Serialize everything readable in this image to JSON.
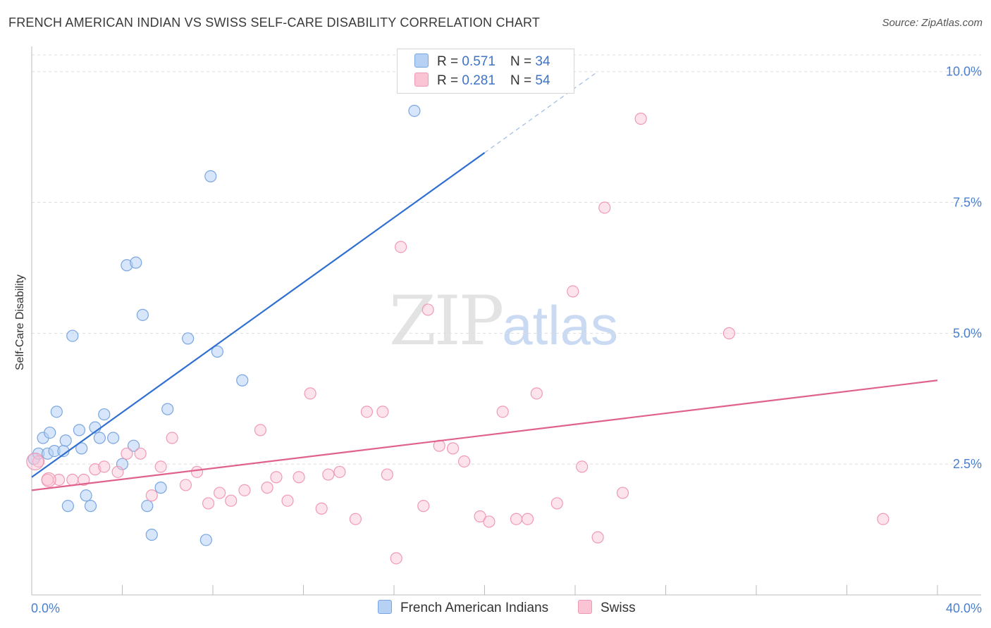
{
  "title": "FRENCH AMERICAN INDIAN VS SWISS SELF-CARE DISABILITY CORRELATION CHART",
  "source": "Source: ZipAtlas.com",
  "watermark": {
    "zip": "ZIP",
    "atlas": "atlas"
  },
  "legend": {
    "rows": [
      {
        "r_label": "R = ",
        "r_value": "0.571",
        "n_label": "N = ",
        "n_value": "34",
        "color": "#b7d1f5",
        "border": "#7aa6e0"
      },
      {
        "r_label": "R = ",
        "r_value": "0.281",
        "n_label": "N = ",
        "n_value": "54",
        "color": "#fbc4d4",
        "border": "#ef9ab4"
      }
    ]
  },
  "bottom_legend": [
    {
      "label": "French American Indians",
      "color": "#b7d1f5",
      "border": "#7aa6e0"
    },
    {
      "label": "Swiss",
      "color": "#fbc4d4",
      "border": "#ef9ab4"
    }
  ],
  "chart_data": {
    "type": "scatter",
    "title": "FRENCH AMERICAN INDIAN VS SWISS SELF-CARE DISABILITY CORRELATION CHART",
    "xlabel": "",
    "ylabel": "Self-Care Disability",
    "xlim": [
      0,
      40
    ],
    "ylim": [
      0,
      10.4
    ],
    "x_tick_labels": [
      {
        "value": 0,
        "label": "0.0%"
      },
      {
        "value": 40,
        "label": "40.0%"
      }
    ],
    "y_tick_labels": [
      {
        "value": 2.5,
        "label": "2.5%"
      },
      {
        "value": 5.0,
        "label": "5.0%"
      },
      {
        "value": 7.5,
        "label": "7.5%"
      },
      {
        "value": 10.0,
        "label": "10.0%"
      }
    ],
    "series": [
      {
        "name": "French American Indians",
        "color": "#7aa6e0",
        "fill": "rgba(183,209,245,0.55)",
        "trend_color": "#2f6fd0",
        "trend": {
          "x0": 0,
          "y0": 2.25,
          "x1": 20,
          "y1": 8.45,
          "dash_to_x": 25,
          "dash_to_y": 10.0
        },
        "points": [
          [
            0.1,
            2.6
          ],
          [
            0.3,
            2.7
          ],
          [
            0.5,
            3.0
          ],
          [
            0.7,
            2.7
          ],
          [
            0.8,
            3.1
          ],
          [
            1.0,
            2.75
          ],
          [
            1.1,
            3.5
          ],
          [
            1.4,
            2.75
          ],
          [
            1.5,
            2.95
          ],
          [
            1.6,
            1.7
          ],
          [
            1.8,
            4.95
          ],
          [
            2.1,
            3.15
          ],
          [
            2.2,
            2.8
          ],
          [
            2.4,
            1.9
          ],
          [
            2.6,
            1.7
          ],
          [
            2.8,
            3.2
          ],
          [
            3.0,
            3.0
          ],
          [
            3.2,
            3.45
          ],
          [
            3.6,
            3.0
          ],
          [
            4.0,
            2.5
          ],
          [
            4.2,
            6.3
          ],
          [
            4.5,
            2.85
          ],
          [
            4.6,
            6.35
          ],
          [
            4.9,
            5.35
          ],
          [
            5.1,
            1.7
          ],
          [
            5.3,
            1.15
          ],
          [
            5.7,
            2.05
          ],
          [
            6.0,
            3.55
          ],
          [
            6.9,
            4.9
          ],
          [
            7.7,
            1.05
          ],
          [
            7.9,
            8.0
          ],
          [
            8.2,
            4.65
          ],
          [
            9.3,
            4.1
          ],
          [
            16.9,
            9.25
          ]
        ]
      },
      {
        "name": "Swiss",
        "color": "#ef9ab4",
        "fill": "rgba(251,196,212,0.45)",
        "trend_color": "#e0628c",
        "trend": {
          "x0": 0,
          "y0": 2.0,
          "x1": 40,
          "y1": 4.1
        },
        "points": [
          [
            0.3,
            2.55
          ],
          [
            0.7,
            2.2
          ],
          [
            1.2,
            2.2
          ],
          [
            1.8,
            2.2
          ],
          [
            2.3,
            2.2
          ],
          [
            2.8,
            2.4
          ],
          [
            3.2,
            2.45
          ],
          [
            3.8,
            2.35
          ],
          [
            4.2,
            2.7
          ],
          [
            4.8,
            2.7
          ],
          [
            5.3,
            1.9
          ],
          [
            5.7,
            2.45
          ],
          [
            6.2,
            3.0
          ],
          [
            6.8,
            2.1
          ],
          [
            7.3,
            2.35
          ],
          [
            7.8,
            1.75
          ],
          [
            8.3,
            1.95
          ],
          [
            8.8,
            1.8
          ],
          [
            9.4,
            2.0
          ],
          [
            10.1,
            3.15
          ],
          [
            10.4,
            2.05
          ],
          [
            10.8,
            2.25
          ],
          [
            11.3,
            1.8
          ],
          [
            11.8,
            2.25
          ],
          [
            12.3,
            3.85
          ],
          [
            12.8,
            1.65
          ],
          [
            13.1,
            2.3
          ],
          [
            13.6,
            2.35
          ],
          [
            14.3,
            1.45
          ],
          [
            14.8,
            3.5
          ],
          [
            15.5,
            3.5
          ],
          [
            15.7,
            2.3
          ],
          [
            16.1,
            0.7
          ],
          [
            16.3,
            6.65
          ],
          [
            17.3,
            1.7
          ],
          [
            17.5,
            5.45
          ],
          [
            18.0,
            2.85
          ],
          [
            18.6,
            2.8
          ],
          [
            19.1,
            2.55
          ],
          [
            19.8,
            1.5
          ],
          [
            20.2,
            1.4
          ],
          [
            20.8,
            3.5
          ],
          [
            21.4,
            1.45
          ],
          [
            21.9,
            1.45
          ],
          [
            22.3,
            3.85
          ],
          [
            23.2,
            1.75
          ],
          [
            23.9,
            5.8
          ],
          [
            24.3,
            2.45
          ],
          [
            25.0,
            1.1
          ],
          [
            25.3,
            7.4
          ],
          [
            26.1,
            1.95
          ],
          [
            26.9,
            9.1
          ],
          [
            30.8,
            5.0
          ],
          [
            37.6,
            1.45
          ]
        ]
      }
    ]
  }
}
